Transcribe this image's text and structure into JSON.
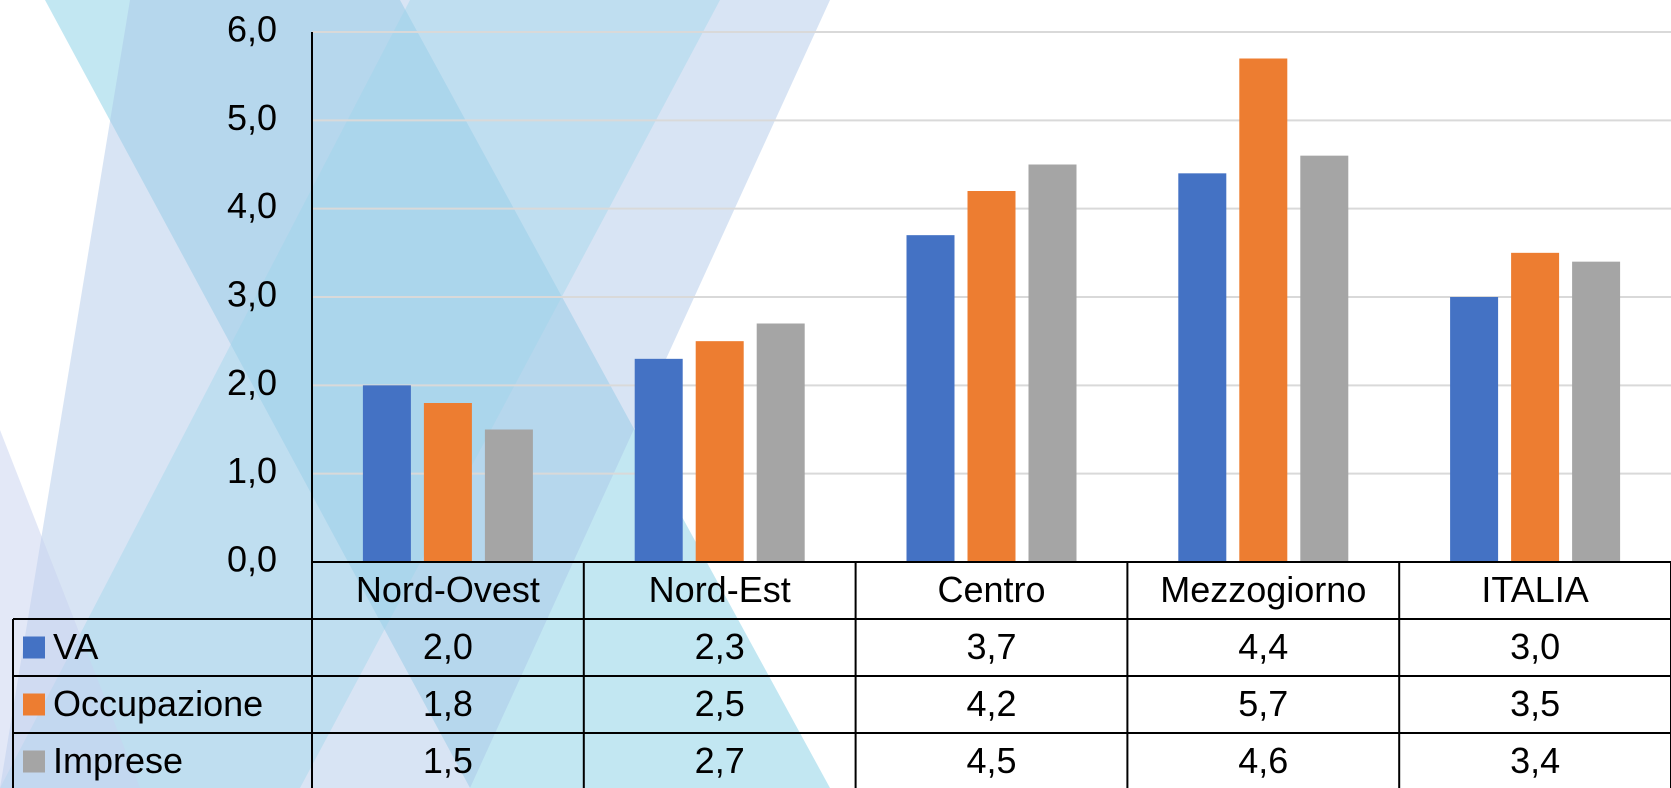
{
  "chart_data": {
    "type": "bar",
    "categories": [
      "Nord-Ovest",
      "Nord-Est",
      "Centro",
      "Mezzogiorno",
      "ITALIA"
    ],
    "series": [
      {
        "name": "VA",
        "color": "#4472c4",
        "values": [
          2.0,
          2.3,
          3.7,
          4.4,
          3.0
        ],
        "value_labels": [
          "2,0",
          "2,3",
          "3,7",
          "4,4",
          "3,0"
        ]
      },
      {
        "name": "Occupazione",
        "color": "#ed7d31",
        "values": [
          1.8,
          2.5,
          4.2,
          5.7,
          3.5
        ],
        "value_labels": [
          "1,8",
          "2,5",
          "4,2",
          "5,7",
          "3,5"
        ]
      },
      {
        "name": "Imprese",
        "color": "#a5a5a5",
        "values": [
          1.5,
          2.7,
          4.5,
          4.6,
          3.4
        ],
        "value_labels": [
          "1,5",
          "2,7",
          "4,5",
          "4,6",
          "3,4"
        ]
      }
    ],
    "ylim": [
      0,
      6
    ],
    "yticks": [
      {
        "value": 0,
        "label": "0,0"
      },
      {
        "value": 1,
        "label": "1,0"
      },
      {
        "value": 2,
        "label": "2,0"
      },
      {
        "value": 3,
        "label": "3,0"
      },
      {
        "value": 4,
        "label": "4,0"
      },
      {
        "value": 5,
        "label": "5,0"
      },
      {
        "value": 6,
        "label": "6,0"
      }
    ],
    "grid": true,
    "data_table": true
  }
}
